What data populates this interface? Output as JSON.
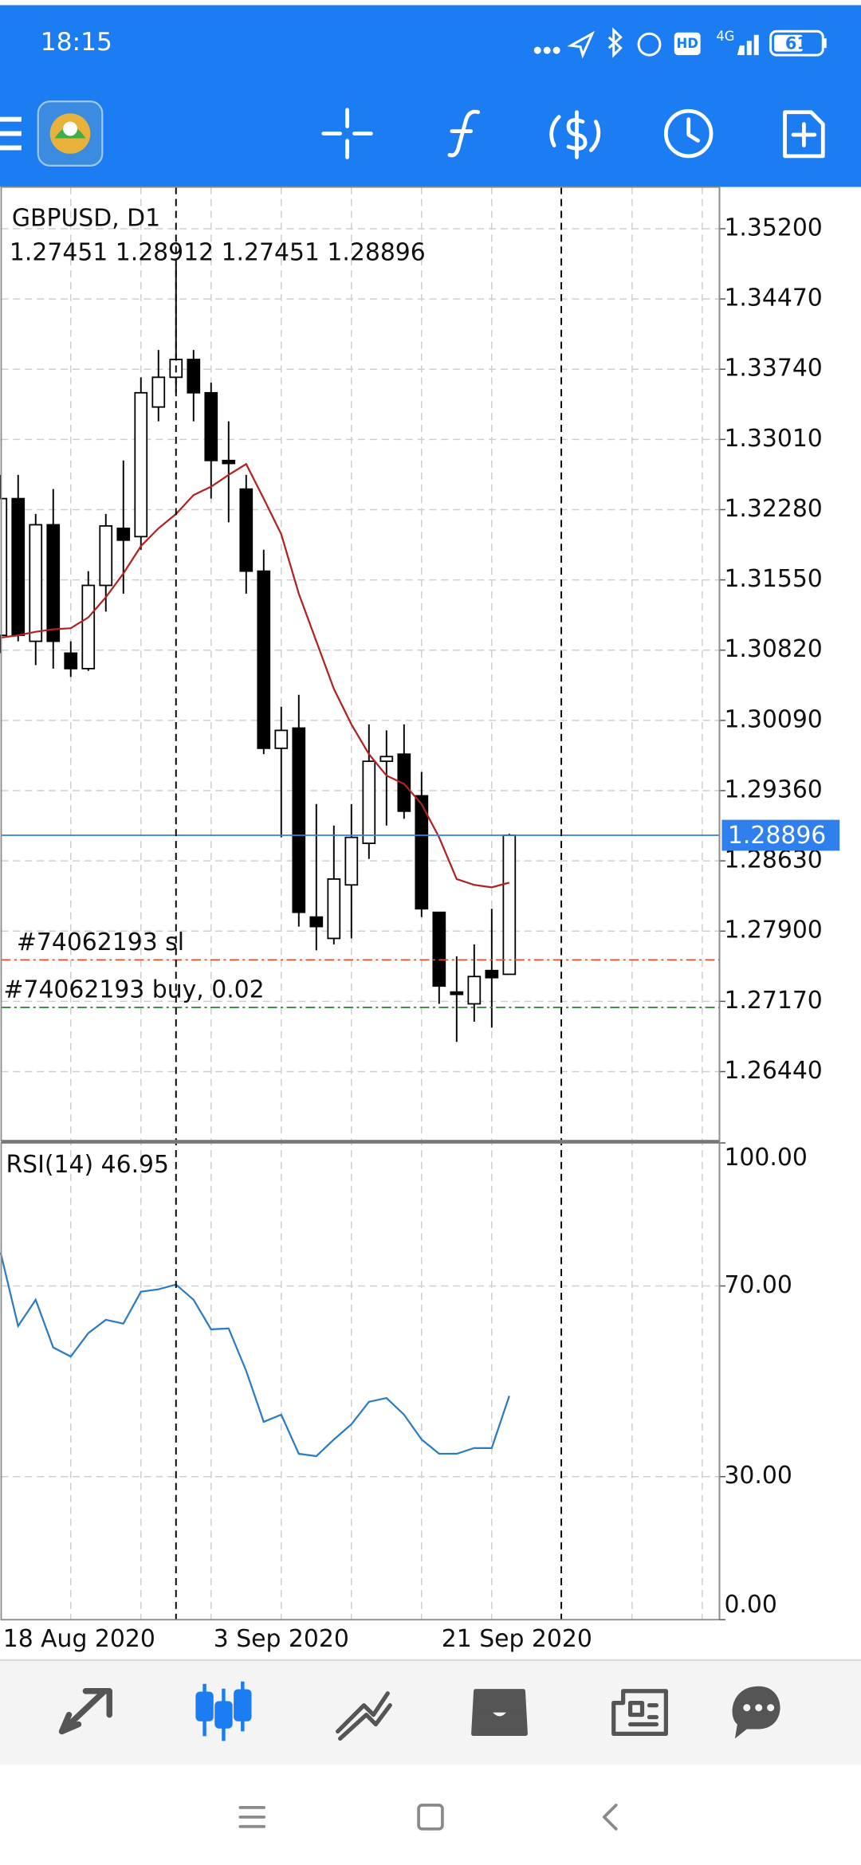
{
  "status_bar": {
    "time": "18:15",
    "hd": "HD",
    "network": "4G",
    "battery": "61"
  },
  "chart_data": [
    {
      "type": "candlestick",
      "title": "GBPUSD, D1",
      "subtitle": "1.27451 1.28912 1.27451 1.28896",
      "categories": [
        "18 Aug 2020",
        null,
        null,
        null,
        null,
        null,
        null,
        null,
        null,
        null,
        null,
        null,
        "3 Sep 2020",
        null,
        null,
        null,
        null,
        null,
        null,
        null,
        null,
        null,
        null,
        null,
        null,
        "21 Sep 2020",
        null,
        null,
        null,
        null
      ],
      "open": [
        1.30974,
        1.32395,
        1.30912,
        1.32123,
        1.30789,
        1.30628,
        1.31493,
        1.32086,
        1.32,
        1.33347,
        1.33656,
        1.33841,
        1.33495,
        1.32791,
        1.32494,
        1.31641,
        1.298,
        1.3001,
        1.28046,
        1.27824,
        1.2838,
        1.28812,
        1.29665,
        1.29739,
        1.29306,
        1.28095,
        1.27267,
        1.27144,
        1.2749,
        1.27451
      ],
      "high": [
        1.32642,
        1.32642,
        1.32235,
        1.32494,
        1.30912,
        1.31641,
        1.32235,
        1.32791,
        1.33656,
        1.3394,
        1.34829,
        1.3394,
        1.336,
        1.33198,
        1.32642,
        1.31864,
        1.30233,
        1.30356,
        1.2922,
        1.28997,
        1.2922,
        1.30048,
        1.29986,
        1.30048,
        1.29553,
        1.28095,
        1.27638,
        1.27762,
        1.28132,
        1.28912
      ],
      "low": [
        1.30789,
        1.30912,
        1.30665,
        1.30628,
        1.30542,
        1.30604,
        1.31221,
        1.31407,
        1.31864,
        1.33198,
        1.33495,
        1.33198,
        1.32395,
        1.32148,
        1.31407,
        1.29739,
        1.28874,
        1.27947,
        1.277,
        1.27762,
        1.27824,
        1.28651,
        1.28997,
        1.29068,
        1.28046,
        1.27144,
        1.26748,
        1.26959,
        1.26897,
        1.27451
      ],
      "close": [
        1.32395,
        1.30974,
        1.32123,
        1.30912,
        1.30628,
        1.31493,
        1.32111,
        1.31963,
        1.33495,
        1.33656,
        1.33841,
        1.33495,
        1.32791,
        1.3276,
        1.31641,
        1.298,
        1.29986,
        1.28095,
        1.27947,
        1.28441,
        1.28874,
        1.29665,
        1.29714,
        1.29146,
        1.28132,
        1.27329,
        1.27242,
        1.27428,
        1.27416,
        1.28896
      ],
      "up_color": "#ffffff",
      "down_color": "#000000",
      "ma": {
        "color": "#b22222",
        "values": [
          1.3095,
          1.30974,
          1.31011,
          1.31036,
          1.31048,
          1.3116,
          1.3137,
          1.31617,
          1.31901,
          1.32086,
          1.32235,
          1.32432,
          1.32519,
          1.32642,
          1.32754,
          1.32395,
          1.32025,
          1.31407,
          1.30912,
          1.30418,
          1.30048,
          1.29739,
          1.29516,
          1.2943,
          1.2922,
          1.28874,
          1.28441,
          1.2838,
          1.28355,
          1.28404
        ]
      },
      "current_price": 1.28896,
      "current_price_color": "#2f80ed",
      "order_lines": [
        {
          "label": "#74062193 sl",
          "value": 1.27601,
          "color": "#e0502a"
        },
        {
          "label": "#74062193 buy, 0.02",
          "value": 1.27107,
          "color": "#2e7d32"
        }
      ],
      "ylim": [
        1.25723,
        1.35633
      ],
      "yticks": [
        {
          "value": 1.352,
          "label": "1.35200"
        },
        {
          "value": 1.3447,
          "label": "1.34470"
        },
        {
          "value": 1.3374,
          "label": "1.33740"
        },
        {
          "value": 1.3301,
          "label": "1.33010"
        },
        {
          "value": 1.3228,
          "label": "1.32280"
        },
        {
          "value": 1.3155,
          "label": "1.31550"
        },
        {
          "value": 1.3082,
          "label": "1.30820"
        },
        {
          "value": 1.3009,
          "label": "1.30090"
        },
        {
          "value": 1.2936,
          "label": "1.29360"
        },
        {
          "value": 1.2863,
          "label": "1.28630"
        },
        {
          "value": 1.279,
          "label": "1.27900"
        },
        {
          "value": 1.2717,
          "label": "1.27170"
        },
        {
          "value": 1.2644,
          "label": "1.26440"
        }
      ],
      "grid": true
    },
    {
      "type": "line",
      "title": "RSI(14) 46.95",
      "color": "#2b7cc4",
      "values": [
        77.0,
        61.6,
        67.1,
        57.1,
        55.2,
        60.1,
        62.9,
        62.1,
        68.8,
        69.3,
        70.3,
        67.1,
        60.9,
        61.1,
        52.2,
        41.5,
        43.0,
        34.8,
        34.3,
        37.8,
        41.0,
        45.7,
        46.5,
        43.0,
        37.8,
        34.8,
        34.8,
        36.0,
        36.0,
        46.95
      ],
      "ylim": [
        0,
        100
      ],
      "yticks": [
        {
          "value": 100,
          "label": "100.00"
        },
        {
          "value": 70,
          "label": "70.00"
        },
        {
          "value": 30,
          "label": "30.00"
        },
        {
          "value": 0,
          "label": "0.00"
        }
      ],
      "grid": true
    }
  ]
}
